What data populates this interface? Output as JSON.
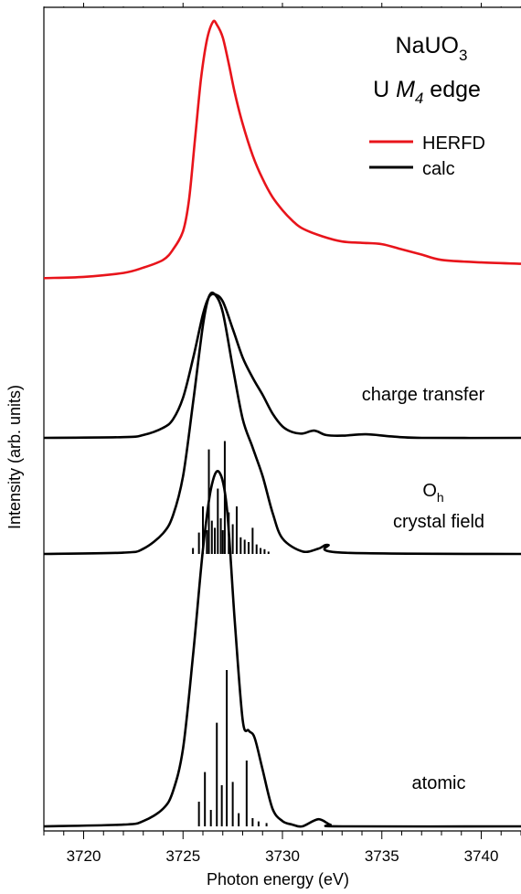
{
  "chart_data": {
    "type": "line",
    "title": "NaUO3",
    "title_parts": {
      "main": "NaUO",
      "sub": "3"
    },
    "subtitle": "U M4 edge",
    "subtitle_parts": {
      "prefix": "U ",
      "italic": "M",
      "italic_sub": "4",
      "suffix": " edge"
    },
    "xlabel": "Photon energy (eV)",
    "ylabel": "Intensity (arb. units)",
    "xlim": [
      3718,
      3742
    ],
    "x_ticks": [
      3720,
      3725,
      3730,
      3735,
      3740
    ],
    "x_tick_labels": [
      "3720",
      "3725",
      "3730",
      "3735",
      "3740"
    ],
    "legend": {
      "placement": "top-right",
      "entries": [
        {
          "label": "HERFD",
          "color": "#e8141b"
        },
        {
          "label": "calc",
          "color": "#000000"
        }
      ]
    },
    "panel_labels": [
      {
        "id": "charge-transfer",
        "lines": [
          "charge transfer"
        ]
      },
      {
        "id": "crystal-field",
        "lines": [
          "O",
          "crystal field"
        ],
        "first_line_sub": "h"
      },
      {
        "id": "atomic",
        "lines": [
          "atomic"
        ]
      }
    ],
    "series": [
      {
        "name": "HERFD",
        "color": "#e8141b",
        "offset": 0.0,
        "x": [
          3718,
          3720,
          3722,
          3723,
          3724,
          3724.5,
          3725,
          3725.3,
          3725.6,
          3725.9,
          3726.2,
          3726.5,
          3726.7,
          3727,
          3727.3,
          3727.6,
          3728,
          3728.5,
          3729,
          3729.5,
          3730,
          3730.5,
          3731,
          3732,
          3733,
          3734,
          3735,
          3736,
          3737,
          3738,
          3740,
          3742
        ],
        "y": [
          0.02,
          0.025,
          0.04,
          0.06,
          0.09,
          0.13,
          0.2,
          0.32,
          0.55,
          0.78,
          0.93,
          1.0,
          0.99,
          0.94,
          0.84,
          0.73,
          0.61,
          0.49,
          0.4,
          0.33,
          0.28,
          0.24,
          0.21,
          0.18,
          0.16,
          0.155,
          0.15,
          0.13,
          0.11,
          0.09,
          0.08,
          0.075
        ]
      },
      {
        "name": "calc",
        "id": "charge-transfer",
        "color": "#000000",
        "offset": 0.0,
        "x": [
          3718,
          3722,
          3723,
          3724,
          3724.5,
          3725,
          3725.5,
          3726,
          3726.3,
          3726.6,
          3727,
          3727.5,
          3728,
          3728.5,
          3729,
          3729.5,
          3730,
          3730.5,
          3731,
          3731.6,
          3732.2,
          3733,
          3734.2,
          3735.5,
          3737,
          3742
        ],
        "y": [
          0.0,
          0.005,
          0.02,
          0.07,
          0.13,
          0.28,
          0.55,
          0.86,
          0.98,
          1.0,
          0.95,
          0.76,
          0.56,
          0.42,
          0.3,
          0.17,
          0.08,
          0.04,
          0.03,
          0.05,
          0.02,
          0.015,
          0.025,
          0.01,
          0.0,
          0.0
        ]
      },
      {
        "name": "calc",
        "id": "crystal-field",
        "color": "#000000",
        "offset": 0.0,
        "x": [
          3718,
          3722,
          3723,
          3724,
          3724.5,
          3725,
          3725.5,
          3726,
          3726.3,
          3726.6,
          3727,
          3727.5,
          3728,
          3728.5,
          3729,
          3729.5,
          3730,
          3731,
          3731.8,
          3732.3,
          3733,
          3742
        ],
        "y": [
          0.0,
          0.005,
          0.02,
          0.08,
          0.15,
          0.3,
          0.58,
          0.88,
          0.99,
          1.0,
          0.93,
          0.72,
          0.52,
          0.41,
          0.3,
          0.16,
          0.06,
          0.01,
          0.02,
          0.035,
          0.005,
          0.0
        ]
      },
      {
        "name": "calc",
        "id": "atomic",
        "color": "#000000",
        "offset": 0.0,
        "x": [
          3718,
          3722,
          3723,
          3724,
          3724.5,
          3725,
          3725.5,
          3726,
          3726.4,
          3726.8,
          3727.2,
          3727.6,
          3728,
          3728.3,
          3728.6,
          3729,
          3729.5,
          3730,
          3730.5,
          3731,
          3731.8,
          3732.4,
          3733,
          3742
        ],
        "y": [
          0.0,
          0.005,
          0.015,
          0.05,
          0.1,
          0.22,
          0.48,
          0.78,
          0.95,
          1.0,
          0.9,
          0.58,
          0.3,
          0.27,
          0.25,
          0.16,
          0.05,
          0.015,
          0.005,
          0.0,
          0.02,
          0.005,
          0.0,
          0.0
        ]
      }
    ],
    "stick_spectra": [
      {
        "id": "crystal-field",
        "x": [
          3725.5,
          3725.8,
          3726.0,
          3726.2,
          3726.3,
          3726.45,
          3726.6,
          3726.75,
          3726.9,
          3727.0,
          3727.1,
          3727.3,
          3727.5,
          3727.7,
          3727.9,
          3728.1,
          3728.3,
          3728.5,
          3728.7,
          3728.9,
          3729.1,
          3729.3
        ],
        "y": [
          0.05,
          0.18,
          0.4,
          0.2,
          0.88,
          0.28,
          0.22,
          0.55,
          0.3,
          0.2,
          0.95,
          0.35,
          0.25,
          0.4,
          0.14,
          0.12,
          0.1,
          0.22,
          0.08,
          0.05,
          0.04,
          0.02
        ]
      },
      {
        "id": "atomic",
        "x": [
          3725.8,
          3726.1,
          3726.4,
          3726.7,
          3726.95,
          3727.2,
          3727.5,
          3727.8,
          3728.2,
          3728.5,
          3728.8,
          3729.2
        ],
        "y": [
          0.15,
          0.33,
          0.1,
          0.63,
          0.25,
          0.95,
          0.27,
          0.08,
          0.4,
          0.05,
          0.03,
          0.02
        ]
      }
    ]
  }
}
